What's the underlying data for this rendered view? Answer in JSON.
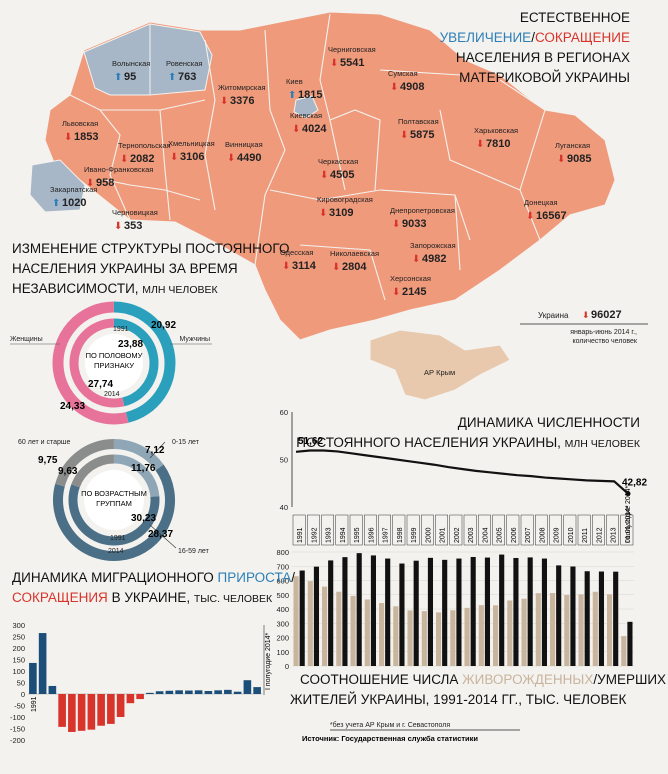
{
  "map": {
    "title_line1": "ЕСТЕСТВЕННОЕ",
    "title_increase": "УВЕЛИЧЕНИЕ",
    "title_slash": "/",
    "title_decrease": "СОКРАЩЕНИЕ",
    "title_line3": "НАСЕЛЕНИЯ В РЕГИОНАХ",
    "title_line4": "МАТЕРИКОВОЙ УКРАИНЫ",
    "regions": [
      {
        "name": "Волынская",
        "value": "95",
        "dir": "up"
      },
      {
        "name": "Ровенская",
        "value": "763",
        "dir": "up"
      },
      {
        "name": "Закарпатская",
        "value": "1020",
        "dir": "up"
      },
      {
        "name": "Киев",
        "value": "1815",
        "dir": "up"
      },
      {
        "name": "Черниговская",
        "value": "5541",
        "dir": "down"
      },
      {
        "name": "Сумская",
        "value": "4908",
        "dir": "down"
      },
      {
        "name": "Житомирская",
        "value": "3376",
        "dir": "down"
      },
      {
        "name": "Киевская",
        "value": "4024",
        "dir": "down"
      },
      {
        "name": "Львовская",
        "value": "1853",
        "dir": "down"
      },
      {
        "name": "Тернопольская",
        "value": "2082",
        "dir": "down"
      },
      {
        "name": "Хмельницкая",
        "value": "3106",
        "dir": "down"
      },
      {
        "name": "Винницкая",
        "value": "4490",
        "dir": "down"
      },
      {
        "name": "Ивано-Франковская",
        "value": "958",
        "dir": "down"
      },
      {
        "name": "Черновицкая",
        "value": "353",
        "dir": "down"
      },
      {
        "name": "Черкасская",
        "value": "4505",
        "dir": "down"
      },
      {
        "name": "Полтавская",
        "value": "5875",
        "dir": "down"
      },
      {
        "name": "Харьковская",
        "value": "7810",
        "dir": "down"
      },
      {
        "name": "Луганская",
        "value": "9085",
        "dir": "down"
      },
      {
        "name": "Кировоградская",
        "value": "3109",
        "dir": "down"
      },
      {
        "name": "Днепропетровская",
        "value": "9033",
        "dir": "down"
      },
      {
        "name": "Донецкая",
        "value": "16567",
        "dir": "down"
      },
      {
        "name": "Одесская",
        "value": "3114",
        "dir": "down"
      },
      {
        "name": "Николаевская",
        "value": "2804",
        "dir": "down"
      },
      {
        "name": "Запорожская",
        "value": "4982",
        "dir": "down"
      },
      {
        "name": "Херсонская",
        "value": "2145",
        "dir": "down"
      },
      {
        "name": "АР Крым",
        "value": "",
        "dir": "none"
      }
    ],
    "total_label": "Украина",
    "total_value": "96027",
    "total_note_line1": "январь-июнь 2014 г.,",
    "total_note_line2": "количество человек"
  },
  "structure": {
    "title_line1": "ИЗМЕНЕНИЕ СТРУКТУРЫ ПОСТОЯННОГО",
    "title_line2": "НАСЕЛЕНИЯ УКРАИНЫ ЗА ВРЕМЯ",
    "title_line3": "НЕЗАВИСИМОСТИ,",
    "title_unit": "МЛН ЧЕЛОВЕК",
    "gender": {
      "women_label": "Женщины",
      "men_label": "Мужчины",
      "center_line1": "ПО ПОЛОВОМУ",
      "center_line2": "ПРИЗНАКУ",
      "year_outer": "1991",
      "year_inner": "2014",
      "outer_women": 27.74,
      "outer_men": 23.88,
      "inner_women": 24.33,
      "inner_men": 20.92,
      "outer_women_label": "27,74",
      "outer_men_label": "23,88",
      "inner_women_label": "24,33",
      "inner_men_label": "20,92"
    },
    "age": {
      "center_line1": "ПО ВОЗРАСТНЫМ",
      "center_line2": "ГРУППАМ",
      "year_outer": "1991",
      "year_inner": "2014",
      "group_60": "60 лет и старше",
      "group_0_15": "0-15 лет",
      "group_16_59": "16-59 лет",
      "v_60_a": "9,75",
      "v_60_b": "9,63",
      "v_0_15_a": "7,12",
      "v_0_15_b": "11,76",
      "v_16_59_a": "30,23",
      "v_16_59_b": "28,37"
    }
  },
  "colors": {
    "orange": "#f09a7c",
    "blue_region": "#a8b7c8",
    "pink": "#e8739a",
    "teal": "#2aa0bd",
    "navy": "#1b4f7a",
    "red": "#d8342c",
    "gray": "#8b8d8c",
    "slate": "#4b6f86",
    "tan": "#c9b49e"
  },
  "population": {
    "title_line1": "ДИНАМИКА ЧИСЛЕННОСТИ",
    "title_line2": "ПОСТОЯННОГО НАСЕЛЕНИЯ УКРАИНЫ,",
    "title_unit": "МЛН ЧЕЛОВЕК",
    "start_label": "51,62",
    "end_label": "42,82"
  },
  "chart_data": [
    {
      "type": "line",
      "title": "ДИНАМИКА ЧИСЛЕННОСТИ ПОСТОЯННОГО НАСЕЛЕНИЯ УКРАИНЫ, МЛН ЧЕЛОВЕК",
      "ylim": [
        40,
        60
      ],
      "yticks": [
        "40",
        "50",
        "60"
      ],
      "x": [
        "1991",
        "1992",
        "1993",
        "1994",
        "1995",
        "1996",
        "1997",
        "1998",
        "1999",
        "2000",
        "2001",
        "2002",
        "2003",
        "2004",
        "2005",
        "2006",
        "2007",
        "2008",
        "2009",
        "2010",
        "2011",
        "2012",
        "2013",
        "01.01.2014*",
        "I полугодие 2014*"
      ],
      "values": [
        51.62,
        51.9,
        51.9,
        51.7,
        51.3,
        50.9,
        50.5,
        50.1,
        49.7,
        49.3,
        48.9,
        48.4,
        48.0,
        47.6,
        47.3,
        47.0,
        46.7,
        46.5,
        46.2,
        46.0,
        45.8,
        45.6,
        45.5,
        45.4,
        42.82
      ]
    },
    {
      "type": "bar",
      "title": "СООТНОШЕНИЕ ЧИСЛА ЖИВОРОЖДЕННЫХ/УМЕРШИХ ЖИТЕЛЕЙ УКРАИНЫ, 1991-2014 ГГ., ТЫС. ЧЕЛОВЕК",
      "title_line1_a": "СООТНОШЕНИЕ ЧИСЛА",
      "title_line1_b": "ЖИВОРОЖДЕННЫХ",
      "title_line1_c": "/УМЕРШИХ",
      "title_line2": "ЖИТЕЛЕЙ УКРАИНЫ, 1991-2014 ГГ., ТЫС. ЧЕЛОВЕК",
      "ylim": [
        0,
        800
      ],
      "yticks": [
        "0",
        "100",
        "200",
        "300",
        "400",
        "500",
        "600",
        "700",
        "800"
      ],
      "categories": [
        "1991",
        "1992",
        "1993",
        "1994",
        "1995",
        "1996",
        "1997",
        "1998",
        "1999",
        "2000",
        "2001",
        "2002",
        "2003",
        "2004",
        "2005",
        "2006",
        "2007",
        "2008",
        "2009",
        "2010",
        "2011",
        "2012",
        "2013",
        "I полугодие 2014*"
      ],
      "series": [
        {
          "name": "ЖИВОРОЖДЕННЫХ",
          "values": [
            630,
            596,
            557,
            521,
            492,
            467,
            442,
            419,
            390,
            385,
            376,
            391,
            408,
            427,
            426,
            460,
            472,
            511,
            512,
            498,
            503,
            521,
            503,
            210
          ]
        },
        {
          "name": "УМЕРШИХ",
          "values": [
            670,
            697,
            741,
            764,
            792,
            776,
            754,
            719,
            739,
            759,
            745,
            754,
            765,
            761,
            782,
            758,
            762,
            754,
            706,
            698,
            665,
            663,
            662,
            310
          ]
        }
      ],
      "footnote": "*без учета АР Крым и г. Севастополя",
      "source": "Источник: Государственная служба статистики"
    },
    {
      "type": "bar",
      "title": "ДИНАМИКА МИГРАЦИОННОГО ПРИРОСТА/СОКРАЩЕНИЯ В УКРАИНЕ, ТЫС. ЧЕЛОВЕК",
      "title_a": "ДИНАМИКА МИГРАЦИОННОГО",
      "title_b": "ПРИРОСТА",
      "title_c": "/",
      "title_d": "СОКРАЩЕНИЯ",
      "title_e": "В УКРАИНЕ,",
      "title_unit": "ТЫС. ЧЕЛОВЕК",
      "ylim": [
        -200,
        300
      ],
      "yticks": [
        "300",
        "250",
        "200",
        "150",
        "100",
        "50",
        "0",
        "-50",
        "-100",
        "-150",
        "-200"
      ],
      "first_label": "1991",
      "last_label": "I полугодие 2014*",
      "values": [
        135,
        265,
        35,
        -143,
        -165,
        -160,
        -155,
        -138,
        -130,
        -100,
        -40,
        -22,
        5,
        12,
        14,
        16,
        15,
        16,
        13,
        16,
        18,
        10,
        60,
        30
      ]
    }
  ]
}
